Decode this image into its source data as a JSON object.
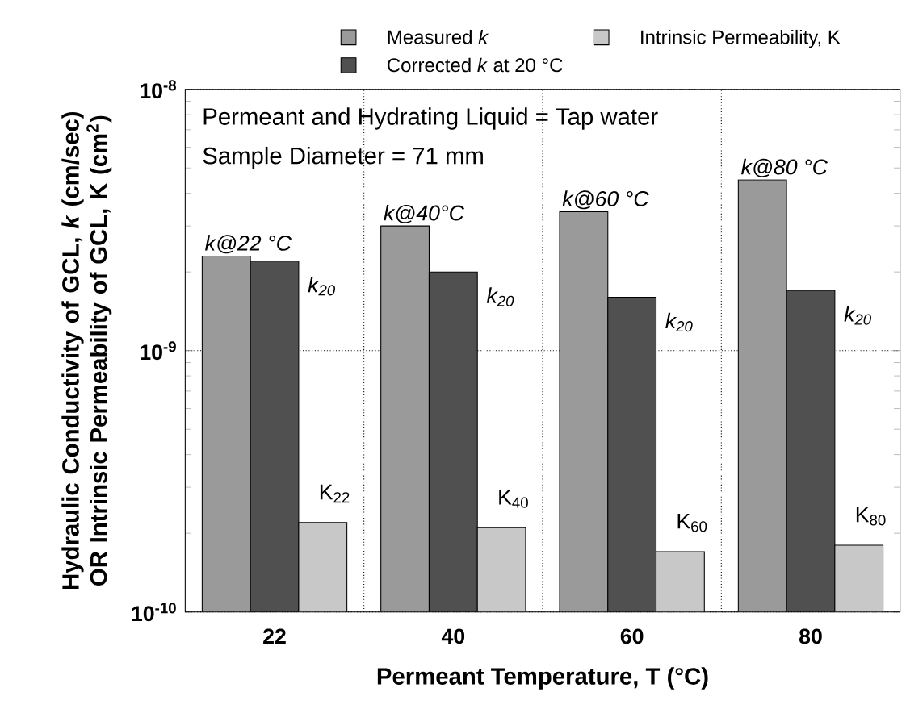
{
  "chart_data": {
    "type": "bar",
    "xlabel": "Permeant Temperature, T (°C)",
    "ylabel": "Hydraulic Conductivity of GCL, *k* (cm/sec) OR Intrinsic Permeability of GCL, K (cm$^{2}$)",
    "categories": [
      "22",
      "40",
      "60",
      "80"
    ],
    "series": [
      {
        "name": "Measured *k*",
        "color": "#9a9a9a",
        "values": [
          2.3e-09,
          3e-09,
          3.4e-09,
          4.5e-09
        ]
      },
      {
        "name": "Corrected *k* at 20 °C",
        "color": "#505050",
        "values": [
          2.2e-09,
          2e-09,
          1.6e-09,
          1.7e-09
        ]
      },
      {
        "name": "Intrinsic Permeability, K",
        "color": "#c8c8c8",
        "values": [
          2.2e-10,
          2.1e-10,
          1.7e-10,
          1.8e-10
        ]
      }
    ],
    "log": true,
    "ylim": [
      1e-10,
      1e-08
    ],
    "yticks": [
      {
        "value": 1e-10,
        "label": "10$^{-10}$"
      },
      {
        "value": 1e-09,
        "label": "10$^{-9}$"
      },
      {
        "value": 1e-08,
        "label": "10$^{-8}$"
      }
    ],
    "grid": true,
    "legend": "top",
    "annotations": [
      "Permeant and Hydrating Liquid = Tap water",
      "Sample Diameter = 71 mm",
      "k@22 °C",
      "k@40°C",
      "k@60 °C",
      "k@80 °C",
      "k$_{20}$",
      "k$_{20}$",
      "k$_{20}$",
      "k$_{20}$",
      "K$_{22}$",
      "K$_{40}$",
      "K$_{60}$",
      "K$_{80}$"
    ]
  }
}
